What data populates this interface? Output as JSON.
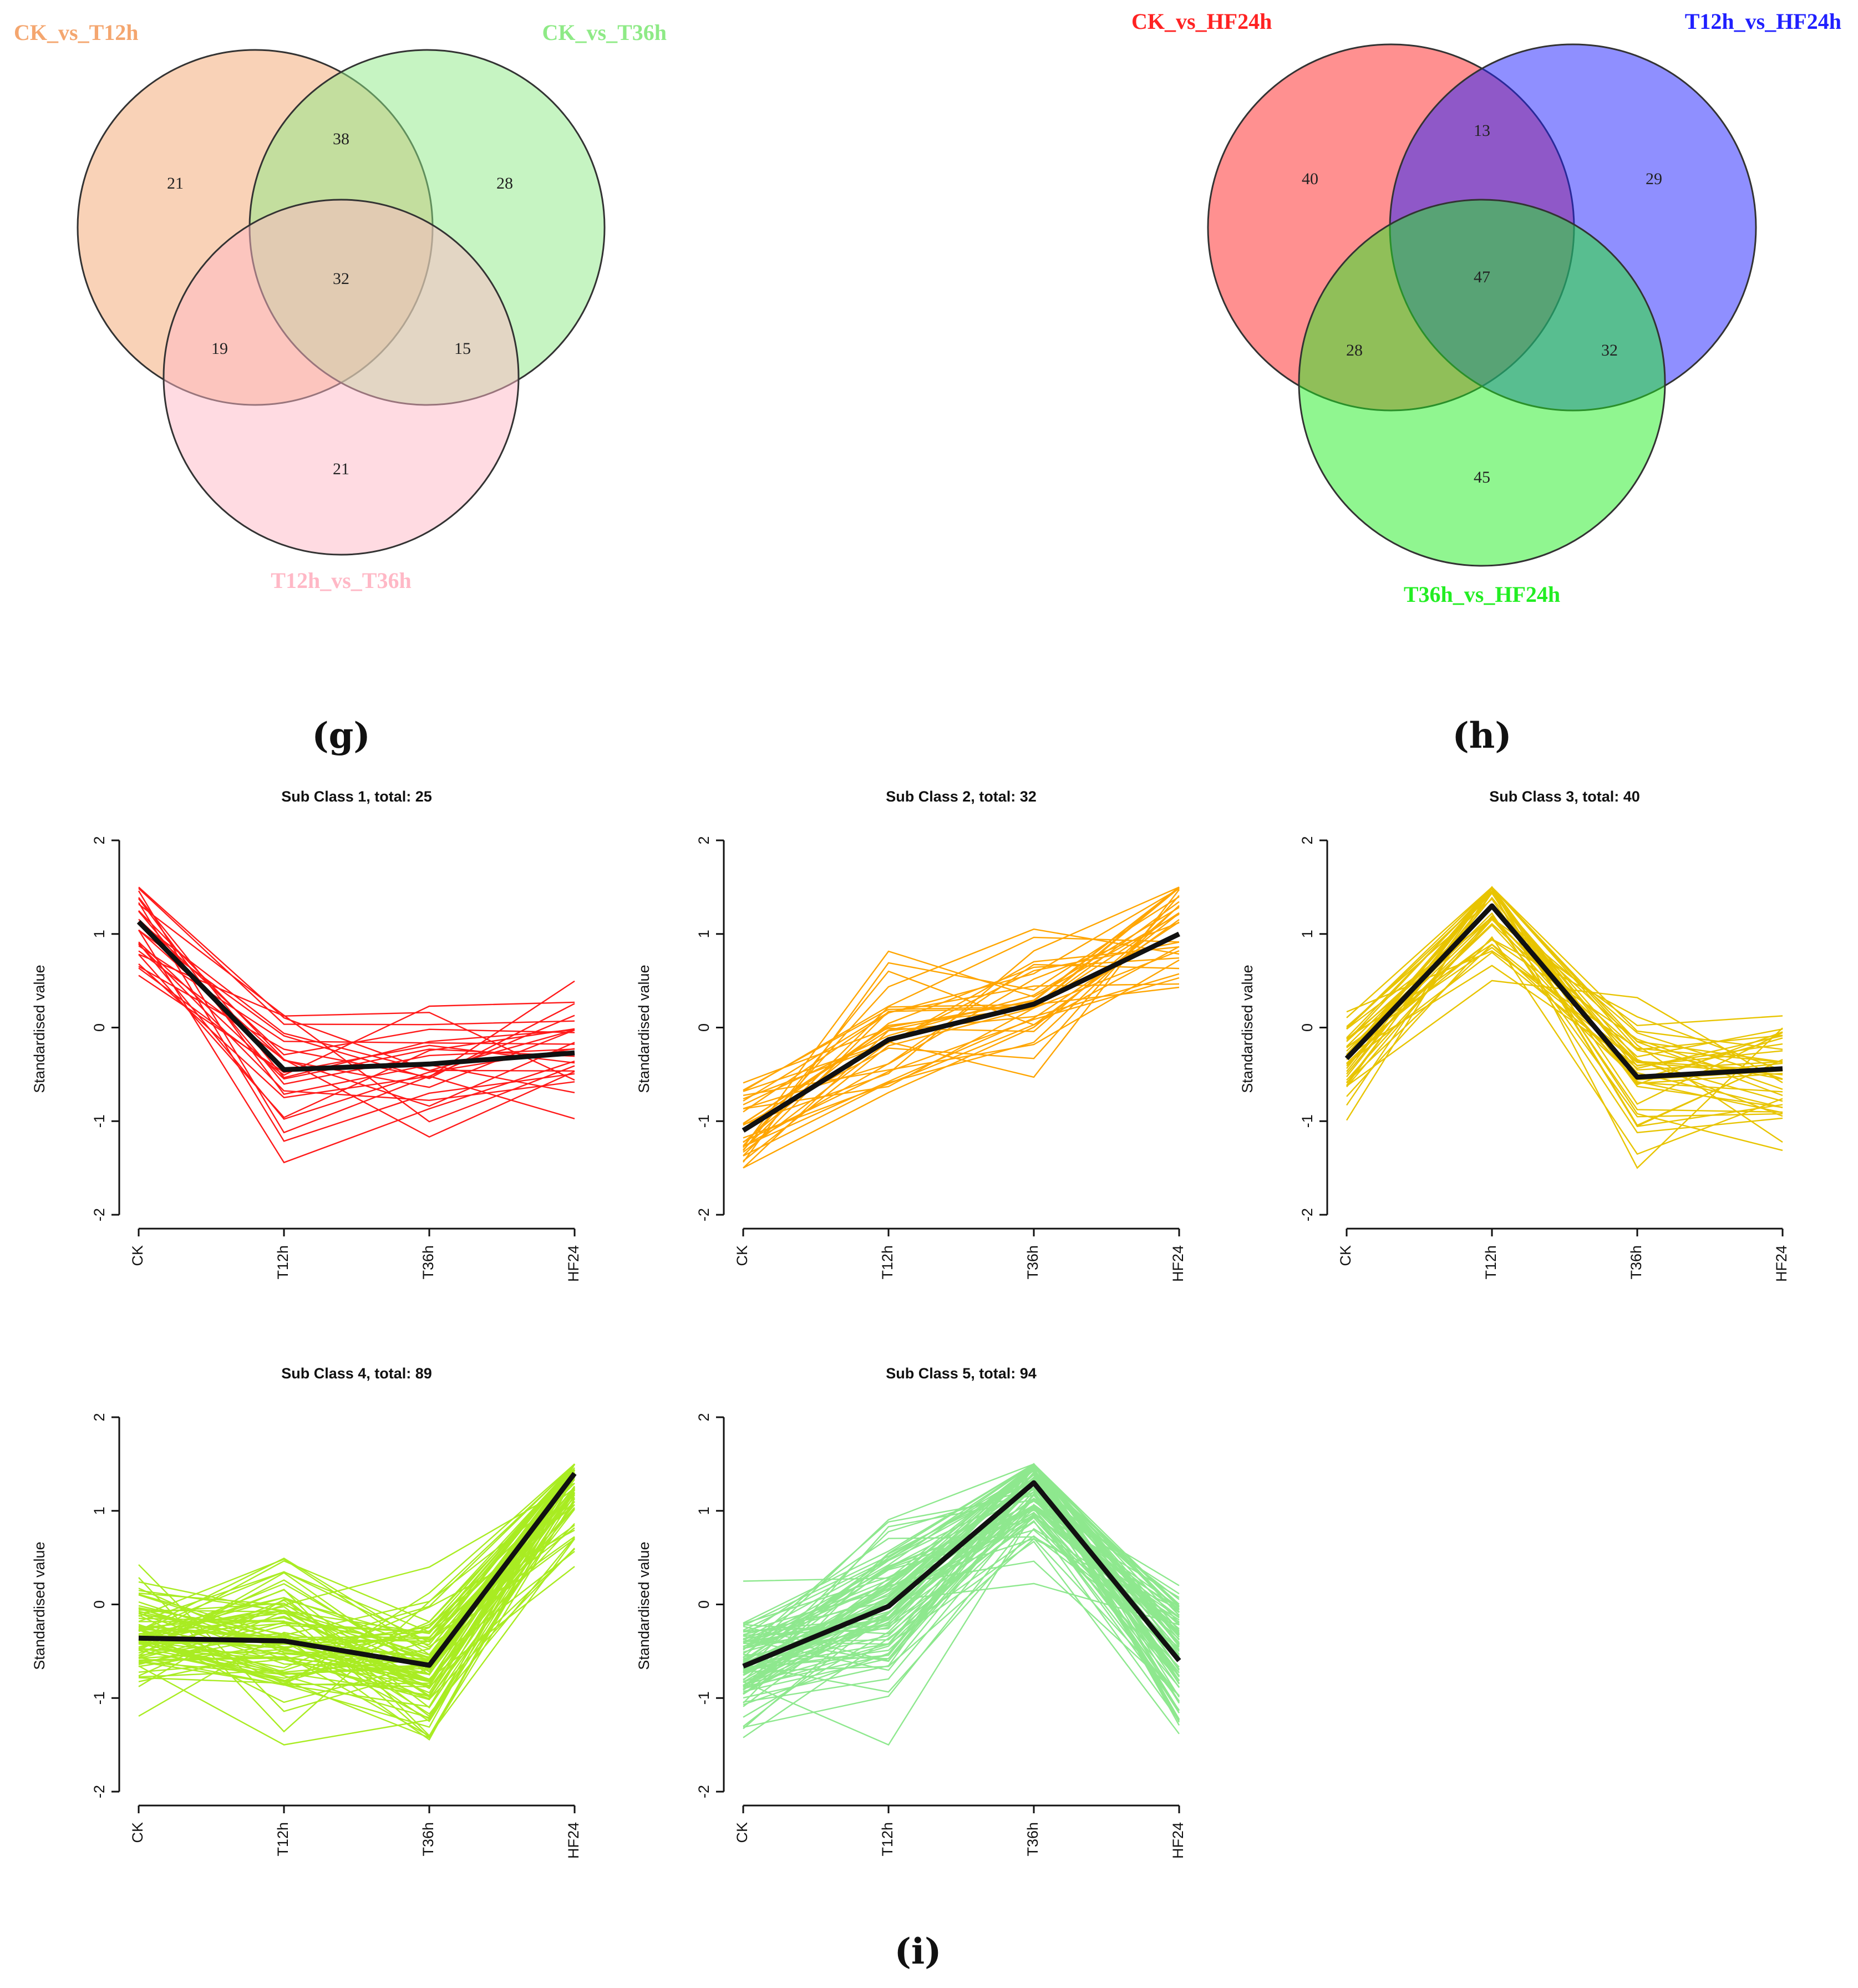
{
  "panels": {
    "g": "(g)",
    "h": "(h)",
    "i": "(i)"
  },
  "chart_data": [
    {
      "type": "venn",
      "sets": [
        {
          "name": "CK_vs_T12h",
          "color": "#f4a66f"
        },
        {
          "name": "CK_vs_T36h",
          "color": "#8eea86"
        },
        {
          "name": "T12h_vs_T36h",
          "color": "#ffb8c6"
        }
      ],
      "regions": {
        "a_only": 21,
        "b_only": 28,
        "c_only": 21,
        "ab": 38,
        "ac": 19,
        "bc": 15,
        "abc": 32
      }
    },
    {
      "type": "venn",
      "sets": [
        {
          "name": "CK_vs_HF24h",
          "color": "#ff2222"
        },
        {
          "name": "T12h_vs_HF24h",
          "color": "#2020ff"
        },
        {
          "name": "T36h_vs_HF24h",
          "color": "#22ee22"
        }
      ],
      "regions": {
        "a_only": 40,
        "b_only": 29,
        "c_only": 45,
        "ab": 13,
        "ac": 28,
        "bc": 32,
        "abc": 47
      }
    },
    {
      "type": "line",
      "title": "Sub Class 1, total: 25",
      "color": "#ff1a1a",
      "x": [
        "CK",
        "T12h",
        "T36h",
        "HF24"
      ],
      "ylabel": "Standardised value",
      "ylim": [
        -2,
        2
      ],
      "yticks": [
        "-2",
        "-1",
        "0",
        "1",
        "2"
      ],
      "gene_count": 25,
      "mean": [
        1.13,
        -0.45,
        -0.39,
        -0.27
      ]
    },
    {
      "type": "line",
      "title": "Sub Class 2, total: 32",
      "color": "#ffa500",
      "x": [
        "CK",
        "T12h",
        "T36h",
        "HF24"
      ],
      "ylabel": "Standardised value",
      "ylim": [
        -2,
        2
      ],
      "yticks": [
        "-2",
        "-1",
        "0",
        "1",
        "2"
      ],
      "gene_count": 32,
      "mean": [
        -1.1,
        -0.13,
        0.25,
        1.0
      ]
    },
    {
      "type": "line",
      "title": "Sub Class 3, total: 40",
      "color": "#e8c400",
      "x": [
        "CK",
        "T12h",
        "T36h",
        "HF24"
      ],
      "ylabel": "Standardised value",
      "ylim": [
        -2,
        2
      ],
      "yticks": [
        "-2",
        "-1",
        "0",
        "1",
        "2"
      ],
      "gene_count": 40,
      "mean": [
        -0.33,
        1.3,
        -0.53,
        -0.44
      ]
    },
    {
      "type": "line",
      "title": "Sub Class 4, total: 89",
      "color": "#a9ec22",
      "x": [
        "CK",
        "T12h",
        "T36h",
        "HF24"
      ],
      "ylabel": "Standardised value",
      "ylim": [
        -2,
        2
      ],
      "yticks": [
        "-2",
        "-1",
        "0",
        "1",
        "2"
      ],
      "gene_count": 89,
      "mean": [
        -0.36,
        -0.39,
        -0.65,
        1.4
      ]
    },
    {
      "type": "line",
      "title": "Sub Class 5, total: 94",
      "color": "#8ee88e",
      "x": [
        "CK",
        "T12h",
        "T36h",
        "HF24"
      ],
      "ylabel": "Standardised value",
      "ylim": [
        -2,
        2
      ],
      "yticks": [
        "-2",
        "-1",
        "0",
        "1",
        "2"
      ],
      "gene_count": 94,
      "mean": [
        -0.66,
        -0.02,
        1.3,
        -0.6
      ]
    }
  ]
}
